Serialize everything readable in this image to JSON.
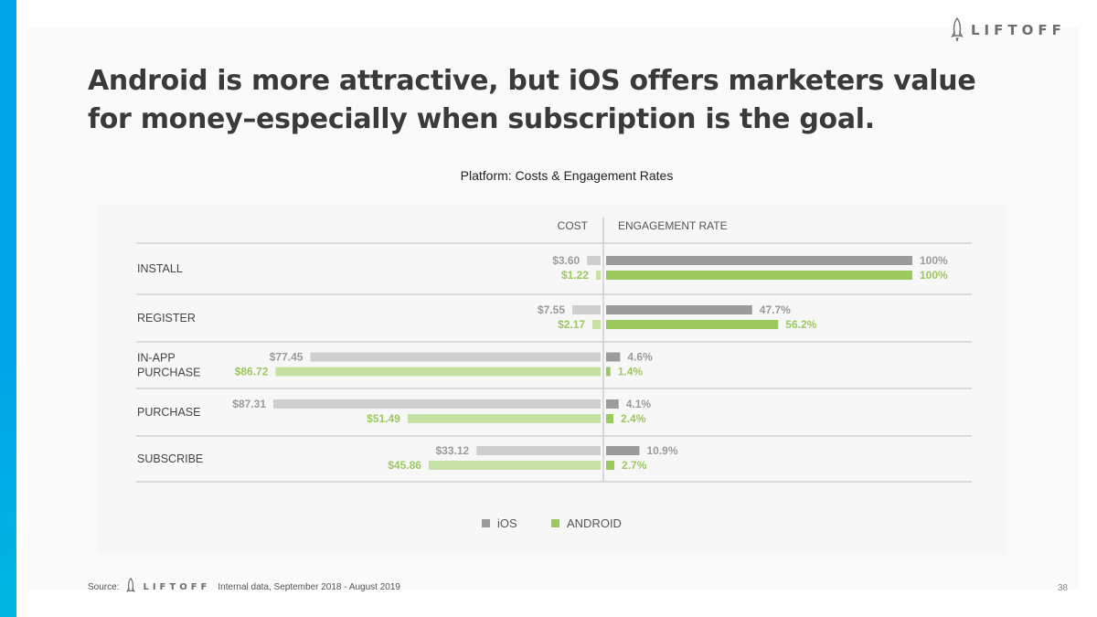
{
  "brand": {
    "name": "LIFTOFF",
    "accent_color": "#00a3e8"
  },
  "headline": {
    "line1": "Android is more attractive, but iOS offers marketers value",
    "line2": "for money–especially when subscription is the goal."
  },
  "chart_data": {
    "type": "bar",
    "title": "Platform: Costs & Engagement Rates",
    "cost_header": "COST",
    "engagement_header": "ENGAGEMENT RATE",
    "categories": [
      "INSTALL",
      "REGISTER",
      "IN-APP\nPURCHASE",
      "PURCHASE",
      "SUBSCRIBE"
    ],
    "cost_max": 87.31,
    "series": [
      {
        "name": "iOS",
        "color": "#9b9b9b",
        "cost_color": "#cfcfcf",
        "cost_values": [
          3.6,
          7.55,
          77.45,
          87.31,
          33.12
        ],
        "cost_labels": [
          "$3.60",
          "$7.55",
          "$77.45",
          "$87.31",
          "$33.12"
        ],
        "engagement_values": [
          100,
          47.7,
          4.6,
          4.1,
          10.9
        ],
        "engagement_labels": [
          "100%",
          "47.7%",
          "4.6%",
          "4.1%",
          "10.9%"
        ]
      },
      {
        "name": "ANDROID",
        "color": "#9bc95e",
        "cost_color": "#c7e0a4",
        "cost_values": [
          1.22,
          2.17,
          86.72,
          51.49,
          45.86
        ],
        "cost_labels": [
          "$1.22",
          "$2.17",
          "$86.72",
          "$51.49",
          "$45.86"
        ],
        "engagement_values": [
          100,
          56.2,
          1.4,
          2.4,
          2.7
        ],
        "engagement_labels": [
          "100%",
          "56.2%",
          "1.4%",
          "2.4%",
          "2.7%"
        ]
      }
    ],
    "legend": [
      "iOS",
      "ANDROID"
    ]
  },
  "footer": {
    "source_label": "Source:",
    "source_text": "Internal data, September 2018 - August 2019",
    "page_number": "38"
  }
}
